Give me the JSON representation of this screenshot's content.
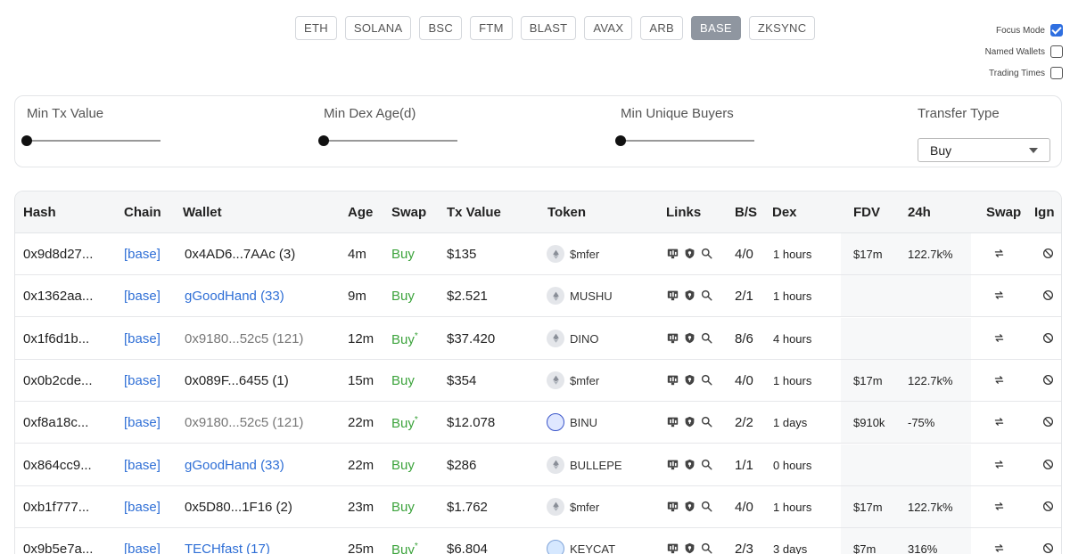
{
  "chains": [
    {
      "label": "ETH",
      "active": false
    },
    {
      "label": "SOLANA",
      "active": false
    },
    {
      "label": "BSC",
      "active": false
    },
    {
      "label": "FTM",
      "active": false
    },
    {
      "label": "BLAST",
      "active": false
    },
    {
      "label": "AVAX",
      "active": false
    },
    {
      "label": "ARB",
      "active": false
    },
    {
      "label": "BASE",
      "active": true
    },
    {
      "label": "ZKSYNC",
      "active": false
    }
  ],
  "toggles": [
    {
      "label": "Focus Mode",
      "checked": true
    },
    {
      "label": "Named Wallets",
      "checked": false
    },
    {
      "label": "Trading Times",
      "checked": false
    }
  ],
  "filters": {
    "min_tx_value": {
      "label": "Min Tx Value",
      "value": 0
    },
    "min_dex_age": {
      "label": "Min Dex Age(d)",
      "value": 0
    },
    "min_unique_buyers": {
      "label": "Min Unique Buyers",
      "value": 0
    },
    "transfer_type": {
      "label": "Transfer Type",
      "value": "Buy"
    }
  },
  "table": {
    "headers": [
      "Hash",
      "Chain",
      "Wallet",
      "Age",
      "Swap",
      "Tx Value",
      "Token",
      "Links",
      "B/S",
      "Dex",
      "FDV",
      "24h",
      "Swap",
      "Ign"
    ],
    "rows": [
      {
        "hash": "0x9d8d27...",
        "chain": "[base]",
        "wallet": "0x4AD6...7AAc (3)",
        "wallet_style": "plain",
        "age": "4m",
        "swap": "Buy",
        "star": "",
        "tx_value": "$135",
        "token": "$mfer",
        "token_icon": "eth",
        "bs": "4/0",
        "dex": "1 hours",
        "fdv": "$17m",
        "change": "122.7k%"
      },
      {
        "hash": "0x1362aa...",
        "chain": "[base]",
        "wallet": "gGoodHand (33)",
        "wallet_style": "link",
        "age": "9m",
        "swap": "Buy",
        "star": "",
        "tx_value": "$2.521",
        "token": "MUSHU",
        "token_icon": "eth",
        "bs": "2/1",
        "dex": "1 hours",
        "fdv": "",
        "change": ""
      },
      {
        "hash": "0x1f6d1b...",
        "chain": "[base]",
        "wallet": "0x9180...52c5 (121)",
        "wallet_style": "grey",
        "age": "12m",
        "swap": "Buy",
        "star": "*",
        "tx_value": "$37.420",
        "token": "DINO",
        "token_icon": "eth",
        "bs": "8/6",
        "dex": "4 hours",
        "fdv": "",
        "change": ""
      },
      {
        "hash": "0x0b2cde...",
        "chain": "[base]",
        "wallet": "0x089F...6455 (1)",
        "wallet_style": "plain",
        "age": "15m",
        "swap": "Buy",
        "star": "",
        "tx_value": "$354",
        "token": "$mfer",
        "token_icon": "eth",
        "bs": "4/0",
        "dex": "1 hours",
        "fdv": "$17m",
        "change": "122.7k%"
      },
      {
        "hash": "0xf8a18c...",
        "chain": "[base]",
        "wallet": "0x9180...52c5 (121)",
        "wallet_style": "grey",
        "age": "22m",
        "swap": "Buy",
        "star": "*",
        "tx_value": "$12.078",
        "token": "BINU",
        "token_icon": "binu",
        "bs": "2/2",
        "dex": "1 days",
        "fdv": "$910k",
        "change": "-75%"
      },
      {
        "hash": "0x864cc9...",
        "chain": "[base]",
        "wallet": "gGoodHand (33)",
        "wallet_style": "link",
        "age": "22m",
        "swap": "Buy",
        "star": "",
        "tx_value": "$286",
        "token": "BULLEPE",
        "token_icon": "eth",
        "bs": "1/1",
        "dex": "0 hours",
        "fdv": "",
        "change": ""
      },
      {
        "hash": "0xb1f777...",
        "chain": "[base]",
        "wallet": "0x5D80...1F16 (2)",
        "wallet_style": "plain",
        "age": "23m",
        "swap": "Buy",
        "star": "",
        "tx_value": "$1.762",
        "token": "$mfer",
        "token_icon": "eth",
        "bs": "4/0",
        "dex": "1 hours",
        "fdv": "$17m",
        "change": "122.7k%"
      },
      {
        "hash": "0x9b5e7a...",
        "chain": "[base]",
        "wallet": "TECHfast (17)",
        "wallet_style": "link",
        "age": "25m",
        "swap": "Buy",
        "star": "*",
        "tx_value": "$6.804",
        "token": "KEYCAT",
        "token_icon": "keycat",
        "bs": "2/3",
        "dex": "3 days",
        "fdv": "$7m",
        "change": "316%"
      }
    ]
  }
}
